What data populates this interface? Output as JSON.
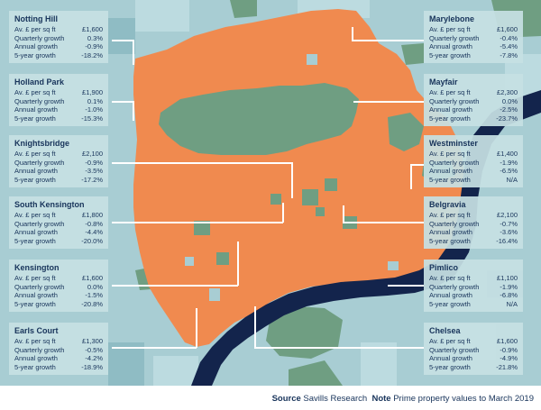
{
  "colors": {
    "background_teal": "#a8cdd3",
    "prime_orange": "#f08a4f",
    "park_green": "#6f9e82",
    "river_navy": "#13244c",
    "card_bg": "#c6e0e3",
    "text_navy": "#17335a"
  },
  "districts": [
    {
      "name": "Notting Hill",
      "price_label": "Av. £ per sq ft",
      "price": "£1,600",
      "q_label": "Quarterly growth",
      "q": "0.3%",
      "a_label": "Annual growth",
      "a": "-0.9%",
      "f_label": "5-year growth",
      "f": "-18.2%"
    },
    {
      "name": "Holland Park",
      "price_label": "Av. £ per sq ft",
      "price": "£1,900",
      "q_label": "Quarterly growth",
      "q": "0.1%",
      "a_label": "Annual growth",
      "a": "-1.0%",
      "f_label": "5-year growth",
      "f": "-15.3%"
    },
    {
      "name": "Knightsbridge",
      "price_label": "Av. £ per sq ft",
      "price": "£2,100",
      "q_label": "Quarterly growth",
      "q": "-0.9%",
      "a_label": "Annual growth",
      "a": "-3.5%",
      "f_label": "5-year growth",
      "f": "-17.2%"
    },
    {
      "name": "South Kensington",
      "price_label": "Av. £ per sq ft",
      "price": "£1,800",
      "q_label": "Quarterly growth",
      "q": "-0.8%",
      "a_label": "Annual growth",
      "a": "-4.4%",
      "f_label": "5-year growth",
      "f": "-20.0%"
    },
    {
      "name": "Kensington",
      "price_label": "Av. £ per sq ft",
      "price": "£1,600",
      "q_label": "Quarterly growth",
      "q": "0.0%",
      "a_label": "Annual growth",
      "a": "-1.5%",
      "f_label": "5-year growth",
      "f": "-20.8%"
    },
    {
      "name": "Earls Court",
      "price_label": "Av. £ per sq ft",
      "price": "£1,300",
      "q_label": "Quarterly growth",
      "q": "-0.5%",
      "a_label": "Annual growth",
      "a": "-4.2%",
      "f_label": "5-year growth",
      "f": "-18.9%"
    },
    {
      "name": "Marylebone",
      "price_label": "Av. £ per sq ft",
      "price": "£1,600",
      "q_label": "Quarterly growth",
      "q": "-0.4%",
      "a_label": "Annual growth",
      "a": "-5.4%",
      "f_label": "5-year growth",
      "f": "-7.8%"
    },
    {
      "name": "Mayfair",
      "price_label": "Av. £ per sq ft",
      "price": "£2,300",
      "q_label": "Quarterly growth",
      "q": "0.0%",
      "a_label": "Annual growth",
      "a": "-2.5%",
      "f_label": "5-year growth",
      "f": "-23.7%"
    },
    {
      "name": "Westminster",
      "price_label": "Av. £ per sq ft",
      "price": "£1,400",
      "q_label": "Quarterly growth",
      "q": "-1.9%",
      "a_label": "Annual growth",
      "a": "-6.5%",
      "f_label": "5-year growth",
      "f": "N/A"
    },
    {
      "name": "Belgravia",
      "price_label": "Av. £ per sq ft",
      "price": "£2,100",
      "q_label": "Quarterly growth",
      "q": "-0.7%",
      "a_label": "Annual growth",
      "a": "-3.6%",
      "f_label": "5-year growth",
      "f": "-16.4%"
    },
    {
      "name": "Pimlico",
      "price_label": "Av. £ per sq ft",
      "price": "£1,100",
      "q_label": "Quarterly growth",
      "q": "-1.9%",
      "a_label": "Annual growth",
      "a": "-6.8%",
      "f_label": "5-year growth",
      "f": "N/A"
    },
    {
      "name": "Chelsea",
      "price_label": "Av. £ per sq ft",
      "price": "£1,600",
      "q_label": "Quarterly growth",
      "q": "-0.9%",
      "a_label": "Annual growth",
      "a": "-4.9%",
      "f_label": "5-year growth",
      "f": "-21.8%"
    }
  ],
  "footer": {
    "source_label": "Source",
    "source_text": "Savills Research",
    "note_label": "Note",
    "note_text": "Prime property values to March 2019"
  }
}
